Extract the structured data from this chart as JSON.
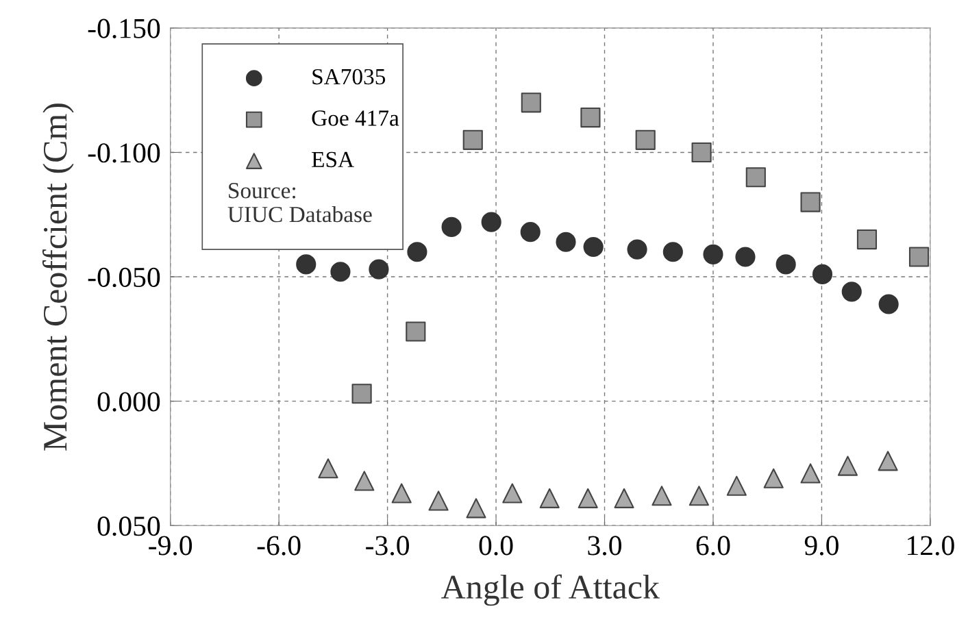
{
  "chart_data": {
    "type": "scatter",
    "xlabel": "Angle of Attack",
    "ylabel": "Moment Ceoffcient (Cm)",
    "xlim": [
      -9.0,
      12.0
    ],
    "xticks": [
      {
        "value": -9,
        "label": "-9.0"
      },
      {
        "value": -6,
        "label": "-6.0"
      },
      {
        "value": -3,
        "label": "-3.0"
      },
      {
        "value": 0,
        "label": "0.0"
      },
      {
        "value": 3,
        "label": "3.0"
      },
      {
        "value": 6,
        "label": "6.0"
      },
      {
        "value": 9,
        "label": "9.0"
      },
      {
        "value": 12,
        "label": "12.0"
      }
    ],
    "ylim": [
      0.05,
      -0.15
    ],
    "yticks": [
      {
        "value": -0.15,
        "label": "-0.150"
      },
      {
        "value": -0.1,
        "label": "-0.100"
      },
      {
        "value": -0.05,
        "label": "-0.050"
      },
      {
        "value": 0,
        "label": "0.000"
      },
      {
        "value": 0.05,
        "label": "0.050"
      }
    ],
    "grid": true,
    "legend": "top left",
    "annotations": [
      "Source:\nUIUC Database"
    ],
    "series": [
      {
        "name": "SA7035",
        "color": "#333333",
        "marker": "circle",
        "x": [
          -5.25,
          -4.3,
          -3.24,
          -2.18,
          -1.23,
          -0.13,
          0.95,
          1.93,
          2.69,
          3.9,
          4.89,
          6.0,
          6.89,
          8.01,
          9.02,
          9.83,
          10.85
        ],
        "values": [
          -0.055,
          -0.052,
          -0.053,
          -0.06,
          -0.07,
          -0.072,
          -0.068,
          -0.064,
          -0.062,
          -0.061,
          -0.06,
          -0.059,
          -0.058,
          -0.055,
          -0.051,
          -0.044,
          -0.039
        ]
      },
      {
        "name": "Goe 417a",
        "color": "#999999",
        "marker": "square",
        "x": [
          -3.71,
          -2.22,
          -0.64,
          0.97,
          2.61,
          4.13,
          5.68,
          7.18,
          8.69,
          10.25,
          11.69
        ],
        "values": [
          -0.003,
          -0.028,
          -0.105,
          -0.12,
          -0.114,
          -0.105,
          -0.1,
          -0.09,
          -0.08,
          -0.065,
          -0.058
        ]
      },
      {
        "name": "ESA",
        "color": "#aaaaaa",
        "marker": "triangle",
        "x": [
          -4.64,
          -3.64,
          -2.61,
          -1.59,
          -0.55,
          0.45,
          1.48,
          2.54,
          3.54,
          4.58,
          5.61,
          6.65,
          7.67,
          8.69,
          9.72,
          10.83
        ],
        "values": [
          0.027,
          0.032,
          0.037,
          0.04,
          0.043,
          0.037,
          0.039,
          0.039,
          0.039,
          0.038,
          0.038,
          0.034,
          0.031,
          0.029,
          0.026,
          0.024
        ]
      }
    ]
  }
}
